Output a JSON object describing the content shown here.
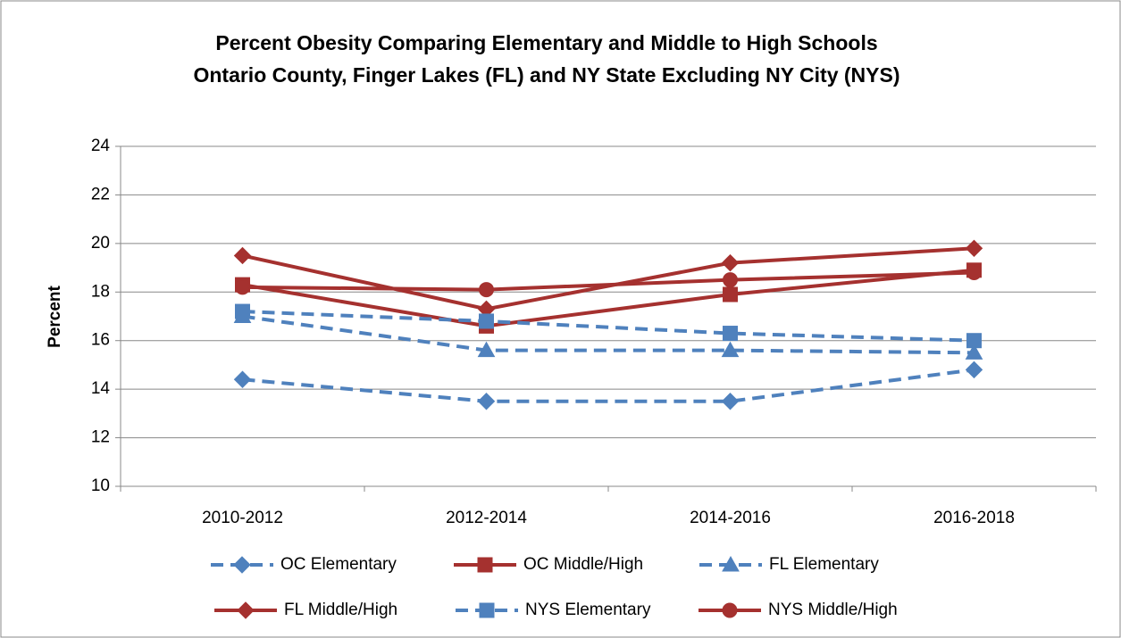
{
  "chart_data": {
    "type": "line",
    "title": "Percent Obesity Comparing Elementary and Middle to High Schools",
    "subtitle": "Ontario County, Finger Lakes (FL) and NY State Excluding NY City (NYS)",
    "y_label": "Percent",
    "categories": [
      "2010-2012",
      "2012-2014",
      "2014-2016",
      "2016-2018"
    ],
    "series": [
      {
        "name": "OC Elementary",
        "color": "#4f81bd",
        "marker": "diamond",
        "dashed": true,
        "values": [
          14.4,
          13.5,
          13.5,
          14.8
        ]
      },
      {
        "name": "OC Middle/High",
        "color": "#a5312f",
        "marker": "square",
        "dashed": false,
        "values": [
          18.3,
          16.6,
          17.9,
          18.9
        ]
      },
      {
        "name": "FL Elementary",
        "color": "#4f81bd",
        "marker": "triangle",
        "dashed": true,
        "values": [
          17.0,
          15.6,
          15.6,
          15.5
        ]
      },
      {
        "name": "FL Middle/High",
        "color": "#a5312f",
        "marker": "diamond",
        "dashed": false,
        "values": [
          19.5,
          17.3,
          19.2,
          19.8
        ]
      },
      {
        "name": "NYS Elementary",
        "color": "#4f81bd",
        "marker": "square",
        "dashed": true,
        "values": [
          17.2,
          16.8,
          16.3,
          16.0
        ]
      },
      {
        "name": "NYS Middle/High",
        "color": "#a5312f",
        "marker": "circle",
        "dashed": false,
        "values": [
          18.2,
          18.1,
          18.5,
          18.8
        ]
      }
    ],
    "ylim": [
      10,
      24
    ],
    "yticks": [
      10,
      12,
      14,
      16,
      18,
      20,
      22,
      24
    ],
    "grid": true,
    "legend": "bottom"
  }
}
